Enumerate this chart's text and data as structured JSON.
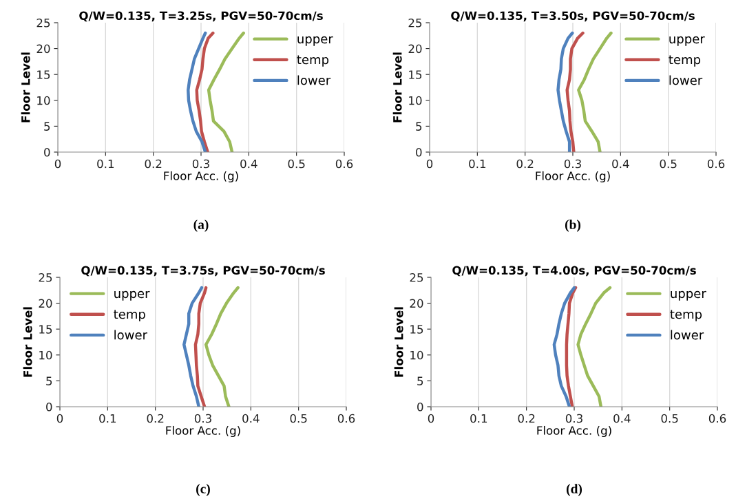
{
  "chart_data": [
    {
      "type": "line",
      "title": "Q/W=0.135, T=3.25s, PGV=50-70cm/s",
      "xlabel": "Floor Acc. (g)",
      "ylabel": "Floor Level",
      "xlim": [
        0,
        0.6
      ],
      "xticks": [
        0,
        0.1,
        0.2,
        0.3,
        0.4,
        0.5,
        0.6
      ],
      "ylim": [
        0,
        25
      ],
      "yticks": [
        0,
        5,
        10,
        15,
        20,
        25
      ],
      "grid": "x",
      "legend": "top right",
      "annotations": [
        "(a)"
      ],
      "series": [
        {
          "name": "upper",
          "color": "#9bbb59",
          "x": [
            0.365,
            0.36,
            0.348,
            0.326,
            0.323,
            0.319,
            0.316,
            0.327,
            0.339,
            0.35,
            0.365,
            0.38,
            0.389
          ],
          "values": [
            0,
            2,
            4,
            6,
            8,
            10,
            12,
            14,
            16,
            18,
            20,
            22,
            23
          ]
        },
        {
          "name": "temp",
          "color": "#c0504d",
          "x": [
            0.314,
            0.307,
            0.301,
            0.299,
            0.296,
            0.292,
            0.291,
            0.297,
            0.302,
            0.304,
            0.307,
            0.315,
            0.325
          ],
          "values": [
            0,
            2,
            4,
            6,
            8,
            10,
            12,
            14,
            16,
            18,
            20,
            22,
            23
          ]
        },
        {
          "name": "lower",
          "color": "#4f81bd",
          "x": [
            0.309,
            0.302,
            0.29,
            0.283,
            0.278,
            0.274,
            0.273,
            0.276,
            0.281,
            0.286,
            0.295,
            0.304,
            0.309
          ],
          "values": [
            0,
            2,
            4,
            6,
            8,
            10,
            12,
            14,
            16,
            18,
            20,
            22,
            23
          ]
        }
      ]
    },
    {
      "type": "line",
      "title": "Q/W=0.135, T=3.50s, PGV=50-70cm/s",
      "xlabel": "Floor Acc. (g)",
      "ylabel": "Floor Level",
      "xlim": [
        0,
        0.6
      ],
      "xticks": [
        0,
        0.1,
        0.2,
        0.3,
        0.4,
        0.5,
        0.6
      ],
      "ylim": [
        0,
        25
      ],
      "yticks": [
        0,
        5,
        10,
        15,
        20,
        25
      ],
      "grid": "x",
      "legend": "top right",
      "annotations": [
        "(b)"
      ],
      "series": [
        {
          "name": "upper",
          "color": "#9bbb59",
          "x": [
            0.357,
            0.353,
            0.34,
            0.326,
            0.323,
            0.319,
            0.312,
            0.324,
            0.333,
            0.343,
            0.357,
            0.371,
            0.38
          ],
          "values": [
            0,
            2,
            4,
            6,
            8,
            10,
            12,
            14,
            16,
            18,
            20,
            22,
            23
          ]
        },
        {
          "name": "temp",
          "color": "#c0504d",
          "x": [
            0.302,
            0.3,
            0.296,
            0.294,
            0.293,
            0.29,
            0.288,
            0.293,
            0.295,
            0.295,
            0.298,
            0.31,
            0.321
          ],
          "values": [
            0,
            2,
            4,
            6,
            8,
            10,
            12,
            14,
            16,
            18,
            20,
            22,
            23
          ]
        },
        {
          "name": "lower",
          "color": "#4f81bd",
          "x": [
            0.293,
            0.293,
            0.286,
            0.28,
            0.276,
            0.272,
            0.269,
            0.271,
            0.275,
            0.276,
            0.28,
            0.29,
            0.299
          ],
          "values": [
            0,
            2,
            4,
            6,
            8,
            10,
            12,
            14,
            16,
            18,
            20,
            22,
            23
          ]
        }
      ]
    },
    {
      "type": "line",
      "title": "Q/W=0.135, T=3.75s, PGV=50-70cm/s",
      "xlabel": "Floor Acc. (g)",
      "ylabel": "Floor Level",
      "xlim": [
        0,
        0.6
      ],
      "xticks": [
        0,
        0.1,
        0.2,
        0.3,
        0.4,
        0.5,
        0.6
      ],
      "ylim": [
        0,
        25
      ],
      "yticks": [
        0,
        5,
        10,
        15,
        20,
        25
      ],
      "grid": "x",
      "legend": "top left",
      "annotations": [
        "(c)"
      ],
      "series": [
        {
          "name": "upper",
          "color": "#9bbb59",
          "x": [
            0.354,
            0.347,
            0.344,
            0.332,
            0.32,
            0.312,
            0.306,
            0.318,
            0.328,
            0.337,
            0.349,
            0.364,
            0.373
          ],
          "values": [
            0,
            2,
            4,
            6,
            8,
            10,
            12,
            14,
            16,
            18,
            20,
            22,
            23
          ]
        },
        {
          "name": "temp",
          "color": "#c0504d",
          "x": [
            0.303,
            0.296,
            0.289,
            0.288,
            0.286,
            0.285,
            0.284,
            0.289,
            0.291,
            0.291,
            0.294,
            0.303,
            0.306
          ],
          "values": [
            0,
            2,
            4,
            6,
            8,
            10,
            12,
            14,
            16,
            18,
            20,
            22,
            23
          ]
        },
        {
          "name": "lower",
          "color": "#4f81bd",
          "x": [
            0.291,
            0.286,
            0.279,
            0.274,
            0.27,
            0.265,
            0.26,
            0.265,
            0.27,
            0.27,
            0.277,
            0.291,
            0.297
          ],
          "values": [
            0,
            2,
            4,
            6,
            8,
            10,
            12,
            14,
            16,
            18,
            20,
            22,
            23
          ]
        }
      ]
    },
    {
      "type": "line",
      "title": "Q/W=0.135, T=4.00s, PGV=50-70cm/s",
      "xlabel": "Floor Acc. (g)",
      "ylabel": "Floor Level",
      "xlim": [
        0,
        0.6
      ],
      "xticks": [
        0,
        0.1,
        0.2,
        0.3,
        0.4,
        0.5,
        0.6
      ],
      "ylim": [
        0,
        25
      ],
      "yticks": [
        0,
        5,
        10,
        15,
        20,
        25
      ],
      "grid": "x",
      "legend": "top right",
      "annotations": [
        "(d)"
      ],
      "series": [
        {
          "name": "upper",
          "color": "#9bbb59",
          "x": [
            0.356,
            0.352,
            0.34,
            0.328,
            0.321,
            0.314,
            0.308,
            0.314,
            0.324,
            0.335,
            0.345,
            0.362,
            0.375
          ],
          "values": [
            0,
            2,
            4,
            6,
            8,
            10,
            12,
            14,
            16,
            18,
            20,
            22,
            23
          ]
        },
        {
          "name": "temp",
          "color": "#c0504d",
          "x": [
            0.296,
            0.292,
            0.288,
            0.285,
            0.284,
            0.284,
            0.284,
            0.285,
            0.287,
            0.289,
            0.29,
            0.297,
            0.303
          ],
          "values": [
            0,
            2,
            4,
            6,
            8,
            10,
            12,
            14,
            16,
            18,
            20,
            22,
            23
          ]
        },
        {
          "name": "lower",
          "color": "#4f81bd",
          "x": [
            0.29,
            0.283,
            0.273,
            0.268,
            0.266,
            0.261,
            0.258,
            0.264,
            0.268,
            0.273,
            0.28,
            0.292,
            0.3
          ],
          "values": [
            0,
            2,
            4,
            6,
            8,
            10,
            12,
            14,
            16,
            18,
            20,
            22,
            23
          ]
        }
      ]
    }
  ]
}
